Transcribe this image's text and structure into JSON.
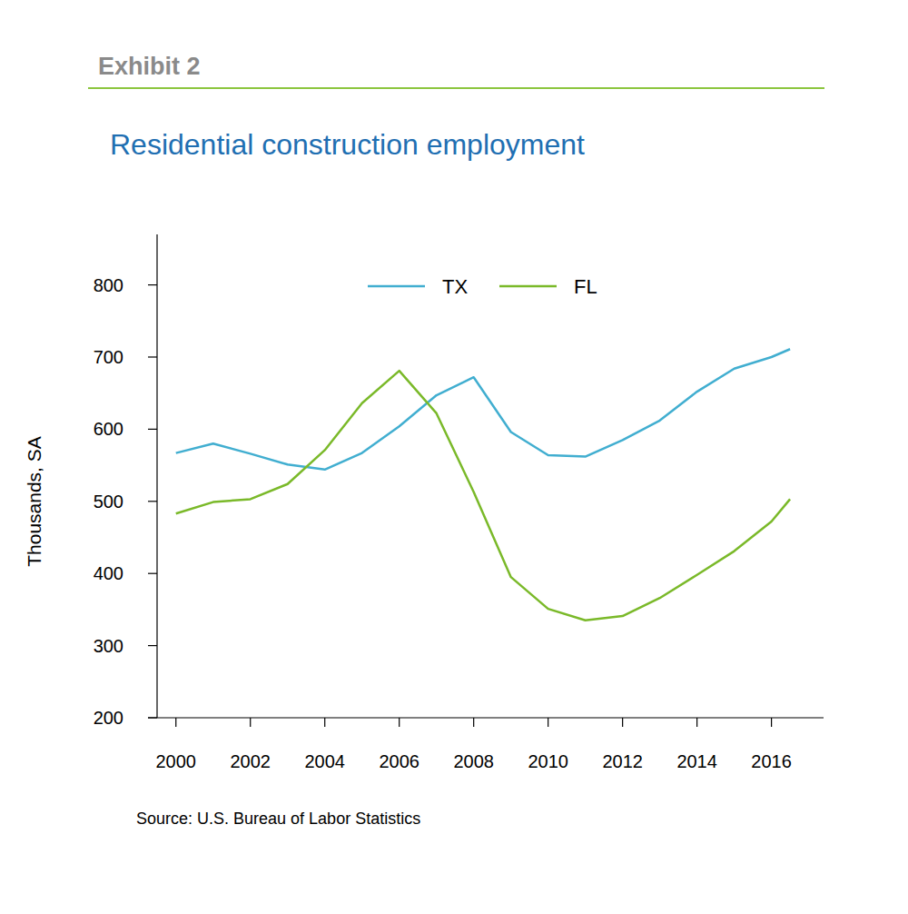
{
  "chart_data": {
    "type": "line",
    "subtitle": "Exhibit 2",
    "title": "Residential construction employment",
    "y_label": "Thousands, SA",
    "annotations": [
      "Source: U.S. Bureau of Labor Statistics"
    ],
    "x": [
      2000,
      2001,
      2002,
      2003,
      2004,
      2005,
      2006,
      2007,
      2008,
      2009,
      2010,
      2011,
      2012,
      2013,
      2014,
      2015,
      2016,
      2016.5
    ],
    "series": [
      {
        "name": "TX",
        "color": "#41aed0",
        "values": [
          567,
          580,
          566,
          551,
          544,
          567,
          604,
          647,
          672,
          596,
          564,
          562,
          585,
          612,
          652,
          684,
          700,
          711
        ]
      },
      {
        "name": "FL",
        "color": "#7ab929",
        "values": [
          483,
          499,
          503,
          524,
          571,
          636,
          681,
          622,
          513,
          395,
          351,
          335,
          341,
          366,
          398,
          431,
          472,
          503
        ]
      }
    ],
    "xlim": [
      1999.25,
      2017.4
    ],
    "xticks": [
      2000,
      2002,
      2004,
      2006,
      2008,
      2010,
      2012,
      2014,
      2016
    ],
    "ylim": [
      200,
      870
    ],
    "yticks": [
      200,
      300,
      400,
      500,
      600,
      700,
      800
    ],
    "grid": false,
    "legend": "top"
  }
}
